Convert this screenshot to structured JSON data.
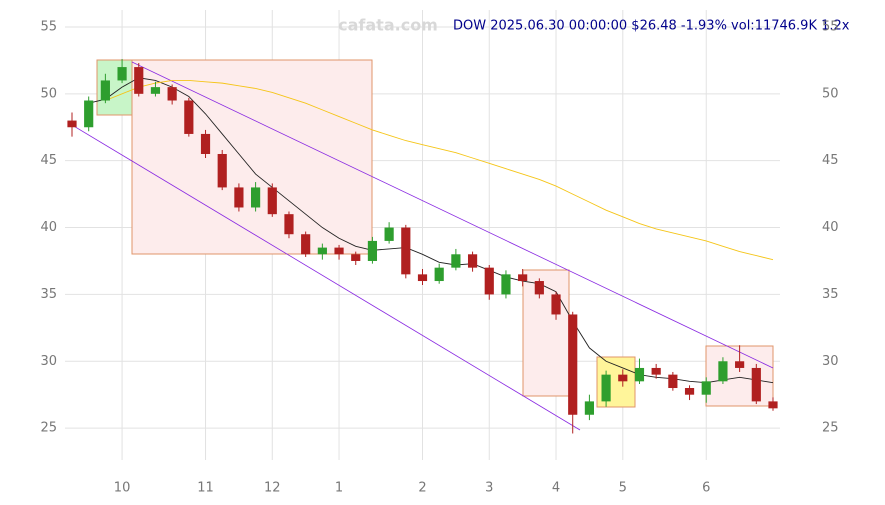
{
  "chart_data": {
    "type": "candlestick",
    "title": "DOW 2025.06.30 00:00:00 $26.48 -1.93% vol:11746.9K 1.2x",
    "watermark": "cafata.com",
    "categories": [
      null,
      null,
      null,
      "10",
      null,
      null,
      null,
      null,
      "11",
      null,
      null,
      null,
      "12",
      null,
      null,
      null,
      "1",
      null,
      null,
      null,
      null,
      "2",
      null,
      null,
      null,
      "3",
      null,
      null,
      null,
      "4",
      null,
      null,
      null,
      "5",
      null,
      null,
      null,
      null,
      "6",
      null,
      null,
      null,
      null
    ],
    "open": [
      48,
      47.5,
      49.5,
      51,
      52,
      50,
      50.5,
      49.5,
      47,
      45.5,
      43,
      41.5,
      43,
      41,
      39.5,
      38,
      38.5,
      38,
      37.5,
      39,
      40,
      36.5,
      36,
      37,
      38,
      37,
      35,
      36.5,
      36,
      35,
      33.5,
      26,
      27,
      29,
      28.5,
      29.5,
      29,
      28,
      27.5,
      28.5,
      30,
      29.5,
      27
    ],
    "high": [
      48.6,
      49.8,
      51.5,
      52.6,
      52.3,
      50.9,
      50.7,
      49.7,
      47.3,
      45.8,
      43.3,
      43.4,
      43.3,
      41.2,
      39.7,
      38.8,
      38.7,
      38.2,
      39.3,
      40.4,
      40.2,
      36.9,
      37.3,
      38.4,
      38.2,
      37.2,
      36.8,
      36.9,
      36.2,
      35.2,
      33.7,
      27.5,
      29.3,
      29.4,
      30.2,
      29.8,
      29.2,
      28.2,
      28.8,
      30.3,
      31.2,
      29.8,
      27.3
    ],
    "low": [
      46.8,
      47.2,
      49.3,
      50.8,
      49.8,
      49.8,
      49.2,
      46.8,
      45.2,
      42.8,
      41.2,
      41.2,
      40.8,
      39.2,
      37.8,
      37.6,
      37.6,
      37.2,
      37.3,
      38.8,
      36.2,
      35.7,
      35.8,
      36.8,
      36.7,
      34.6,
      34.7,
      35.6,
      34.7,
      33.1,
      24.6,
      25.6,
      26.6,
      28.1,
      28.3,
      28.7,
      27.8,
      27.1,
      26.9,
      28.3,
      29.2,
      26.8,
      26.3
    ],
    "close": [
      47.5,
      49.5,
      51,
      52,
      50,
      50.5,
      49.5,
      47,
      45.5,
      43,
      41.5,
      43,
      41,
      39.5,
      38,
      38.5,
      38,
      37.5,
      39,
      40,
      36.5,
      36,
      37,
      38,
      37,
      35,
      36.5,
      36,
      35,
      33.5,
      26,
      27,
      29,
      28.5,
      29.5,
      29,
      28,
      27.5,
      28.5,
      30,
      29.5,
      27,
      26.48
    ],
    "up_color": "#2e9e2e",
    "down_color": "#b02020",
    "overlays": [
      {
        "color": "#222222",
        "values": [
          null,
          49.3,
          49.6,
          50.5,
          51.2,
          51,
          50.5,
          49.8,
          48.5,
          47,
          45.5,
          44,
          43,
          42,
          41,
          40,
          39.2,
          38.6,
          38.3,
          38.4,
          38.5,
          38,
          37.4,
          37.2,
          37.3,
          36.8,
          36.3,
          36,
          35.8,
          35.2,
          33,
          31,
          30,
          29.5,
          29,
          28.8,
          28.7,
          28.5,
          28.4,
          28.6,
          28.8,
          28.6,
          28.4
        ]
      },
      {
        "color": "#f5c518",
        "values": [
          null,
          null,
          49.5,
          50,
          50.5,
          50.8,
          51,
          51,
          50.9,
          50.8,
          50.6,
          50.4,
          50.1,
          49.7,
          49.3,
          48.8,
          48.3,
          47.8,
          47.3,
          46.9,
          46.5,
          46.2,
          45.9,
          45.6,
          45.2,
          44.8,
          44.4,
          44,
          43.6,
          43.1,
          42.5,
          41.9,
          41.3,
          40.8,
          40.3,
          39.9,
          39.6,
          39.3,
          39,
          38.6,
          38.2,
          37.9,
          37.6
        ]
      }
    ],
    "ylim": [
      24,
      56.5
    ],
    "yticks": [
      25,
      30,
      35,
      40,
      45,
      50,
      55
    ],
    "grid": true
  }
}
